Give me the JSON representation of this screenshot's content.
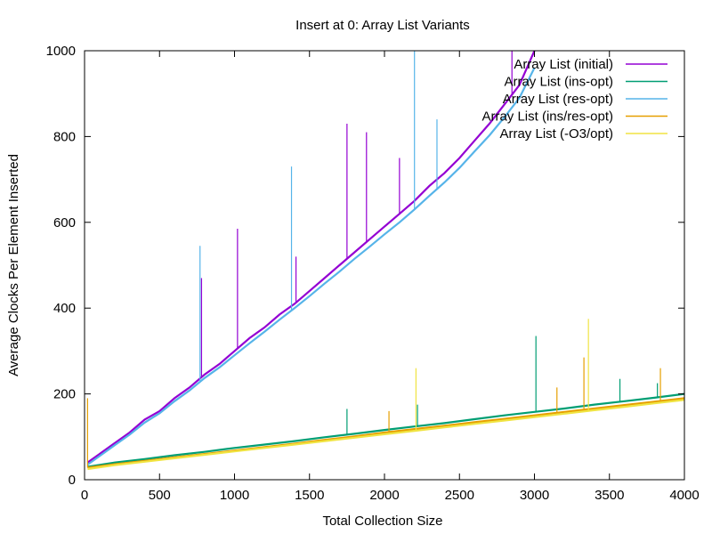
{
  "chart_data": {
    "type": "line",
    "title": "Insert at 0:  Array List Variants",
    "xlabel": "Total Collection Size",
    "ylabel": "Average Clocks Per Element Inserted",
    "xlim": [
      0,
      4000
    ],
    "ylim": [
      0,
      1000
    ],
    "xticks": [
      0,
      500,
      1000,
      1500,
      2000,
      2500,
      3000,
      3500,
      4000
    ],
    "yticks": [
      0,
      200,
      400,
      600,
      800,
      1000
    ],
    "grid": false,
    "legend_position": "top-right",
    "series": [
      {
        "name": "Array List (initial)",
        "color": "#9400d3",
        "x": [
          20,
          100,
          200,
          300,
          400,
          500,
          600,
          700,
          800,
          900,
          1000,
          1100,
          1200,
          1300,
          1400,
          1500,
          1600,
          1700,
          1800,
          1900,
          2000,
          2100,
          2200,
          2300,
          2400,
          2500,
          2600,
          2700,
          2800,
          2900,
          3000
        ],
        "y": [
          40,
          60,
          85,
          110,
          140,
          160,
          190,
          215,
          245,
          270,
          300,
          330,
          355,
          385,
          410,
          440,
          470,
          500,
          530,
          560,
          590,
          620,
          650,
          685,
          715,
          750,
          790,
          830,
          875,
          920,
          1000
        ],
        "spikes": [
          [
            780,
            470
          ],
          [
            1020,
            585
          ],
          [
            1410,
            520
          ],
          [
            1750,
            830
          ],
          [
            1880,
            810
          ],
          [
            2100,
            750
          ],
          [
            2850,
            1000
          ]
        ]
      },
      {
        "name": "Array List (ins-opt)",
        "color": "#009e73",
        "x": [
          20,
          200,
          400,
          600,
          800,
          1000,
          1200,
          1400,
          1600,
          1800,
          2000,
          2200,
          2400,
          2600,
          2800,
          3000,
          3200,
          3400,
          3600,
          3800,
          4000
        ],
        "y": [
          30,
          40,
          48,
          57,
          65,
          74,
          82,
          90,
          99,
          107,
          116,
          124,
          132,
          141,
          150,
          158,
          166,
          175,
          183,
          191,
          200
        ],
        "spikes": [
          [
            1750,
            165
          ],
          [
            2220,
            175
          ],
          [
            3010,
            335
          ],
          [
            3570,
            235
          ],
          [
            3820,
            225
          ]
        ]
      },
      {
        "name": "Array List (res-opt)",
        "color": "#56b4e9",
        "x": [
          20,
          100,
          200,
          300,
          400,
          500,
          600,
          700,
          800,
          900,
          1000,
          1100,
          1200,
          1300,
          1400,
          1500,
          1600,
          1700,
          1800,
          1900,
          2000,
          2100,
          2200,
          2300,
          2400,
          2500,
          2600,
          2700,
          2800,
          2900,
          3000
        ],
        "y": [
          35,
          55,
          80,
          105,
          133,
          155,
          183,
          208,
          237,
          262,
          290,
          318,
          345,
          373,
          400,
          428,
          457,
          485,
          515,
          543,
          572,
          600,
          630,
          662,
          693,
          727,
          765,
          803,
          845,
          890,
          960
        ],
        "spikes": [
          [
            770,
            545
          ],
          [
            1380,
            730
          ],
          [
            2200,
            1000
          ],
          [
            2350,
            840
          ]
        ]
      },
      {
        "name": "Array List (ins/res-opt)",
        "color": "#e69f00",
        "x": [
          20,
          200,
          400,
          600,
          800,
          1000,
          1200,
          1400,
          1600,
          1800,
          2000,
          2200,
          2400,
          2600,
          2800,
          3000,
          3200,
          3400,
          3600,
          3800,
          4000
        ],
        "y": [
          28,
          36,
          44,
          52,
          60,
          68,
          76,
          84,
          93,
          101,
          110,
          118,
          126,
          134,
          142,
          150,
          158,
          166,
          174,
          182,
          190
        ],
        "spikes": [
          [
            20,
            190
          ],
          [
            2030,
            160
          ],
          [
            3150,
            215
          ],
          [
            3330,
            285
          ],
          [
            3840,
            260
          ]
        ]
      },
      {
        "name": "Array List (-O3/opt)",
        "color": "#f0e442",
        "x": [
          20,
          200,
          400,
          600,
          800,
          1000,
          1200,
          1400,
          1600,
          1800,
          2000,
          2200,
          2400,
          2600,
          2800,
          3000,
          3200,
          3400,
          3600,
          3800,
          4000
        ],
        "y": [
          25,
          34,
          42,
          50,
          58,
          66,
          74,
          82,
          90,
          98,
          106,
          114,
          122,
          130,
          138,
          146,
          154,
          162,
          170,
          178,
          186
        ],
        "spikes": [
          [
            2210,
            260
          ],
          [
            3360,
            375
          ]
        ]
      }
    ]
  }
}
